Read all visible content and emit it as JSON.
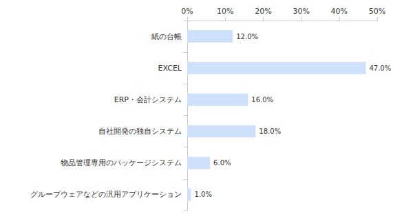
{
  "chart_data": {
    "type": "bar",
    "orientation": "horizontal",
    "categories": [
      "紙の台帳",
      "EXCEL",
      "ERP・会計システム",
      "自社開発の独自システム",
      "物品管理専用のパッケージシステム",
      "グループウェアなどの汎用アプリケーション"
    ],
    "values": [
      12.0,
      47.0,
      16.0,
      18.0,
      6.0,
      1.0
    ],
    "value_labels": [
      "12.0%",
      "47.0%",
      "16.0%",
      "18.0%",
      "6.0%",
      "1.0%"
    ],
    "color": "#cfe0fa",
    "xlim": [
      0,
      50
    ],
    "xticks": [
      {
        "value": 0,
        "label": "0%"
      },
      {
        "value": 10,
        "label": "10%"
      },
      {
        "value": 20,
        "label": "20%"
      },
      {
        "value": 30,
        "label": "30%"
      },
      {
        "value": 40,
        "label": "40%"
      },
      {
        "value": 50,
        "label": "50%"
      }
    ],
    "grid": false,
    "data_labels": true
  }
}
